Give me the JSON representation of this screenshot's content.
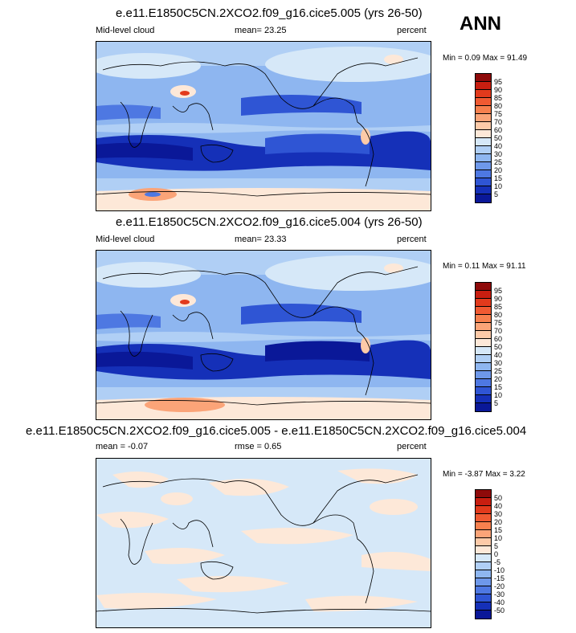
{
  "season": "ANN",
  "panels": [
    {
      "title": "e.e11.E1850C5CN.2XCO2.f09_g16.cice5.005 (yrs 26-50)",
      "left": "Mid-level cloud",
      "center": "mean=  23.25",
      "right": "percent",
      "minmax": "Min =   0.09 Max =  91.49"
    },
    {
      "title": "e.e11.E1850C5CN.2XCO2.f09_g16.cice5.004 (yrs 26-50)",
      "left": "Mid-level cloud",
      "center": "mean=  23.33",
      "right": "percent",
      "minmax": "Min =   0.11 Max =  91.11"
    },
    {
      "title": "e.e11.E1850C5CN.2XCO2.f09_g16.cice5.005 - e.e11.E1850C5CN.2XCO2.f09_g16.cice5.004",
      "left": "mean =  -0.07",
      "center": "rmse =   0.65",
      "right": "percent",
      "minmax": "Min =  -3.87 Max =   3.22"
    }
  ],
  "colorbar_abs": {
    "labels": [
      "95",
      "90",
      "85",
      "80",
      "75",
      "70",
      "60",
      "50",
      "40",
      "30",
      "25",
      "20",
      "15",
      "10",
      "5"
    ],
    "colors": [
      "#8e0a0a",
      "#c81e10",
      "#e23a1c",
      "#f05a32",
      "#f7804e",
      "#fba478",
      "#fdcaa8",
      "#fde8d8",
      "#d6e8f8",
      "#b0cff5",
      "#8eb6f0",
      "#6e98ea",
      "#4e78e2",
      "#2f55d4",
      "#1530b8",
      "#0a1898"
    ]
  },
  "colorbar_diff": {
    "labels": [
      "50",
      "40",
      "30",
      "20",
      "15",
      "10",
      "5",
      "0",
      "-5",
      "-10",
      "-15",
      "-20",
      "-30",
      "-40",
      "-50"
    ],
    "colors": [
      "#8e0a0a",
      "#c81e10",
      "#e23a1c",
      "#f05a32",
      "#f7804e",
      "#fba478",
      "#fdcaa8",
      "#fde8d8",
      "#d6e8f8",
      "#b0cff5",
      "#8eb6f0",
      "#6e98ea",
      "#4e78e2",
      "#2f55d4",
      "#1530b8",
      "#0a1898"
    ]
  }
}
